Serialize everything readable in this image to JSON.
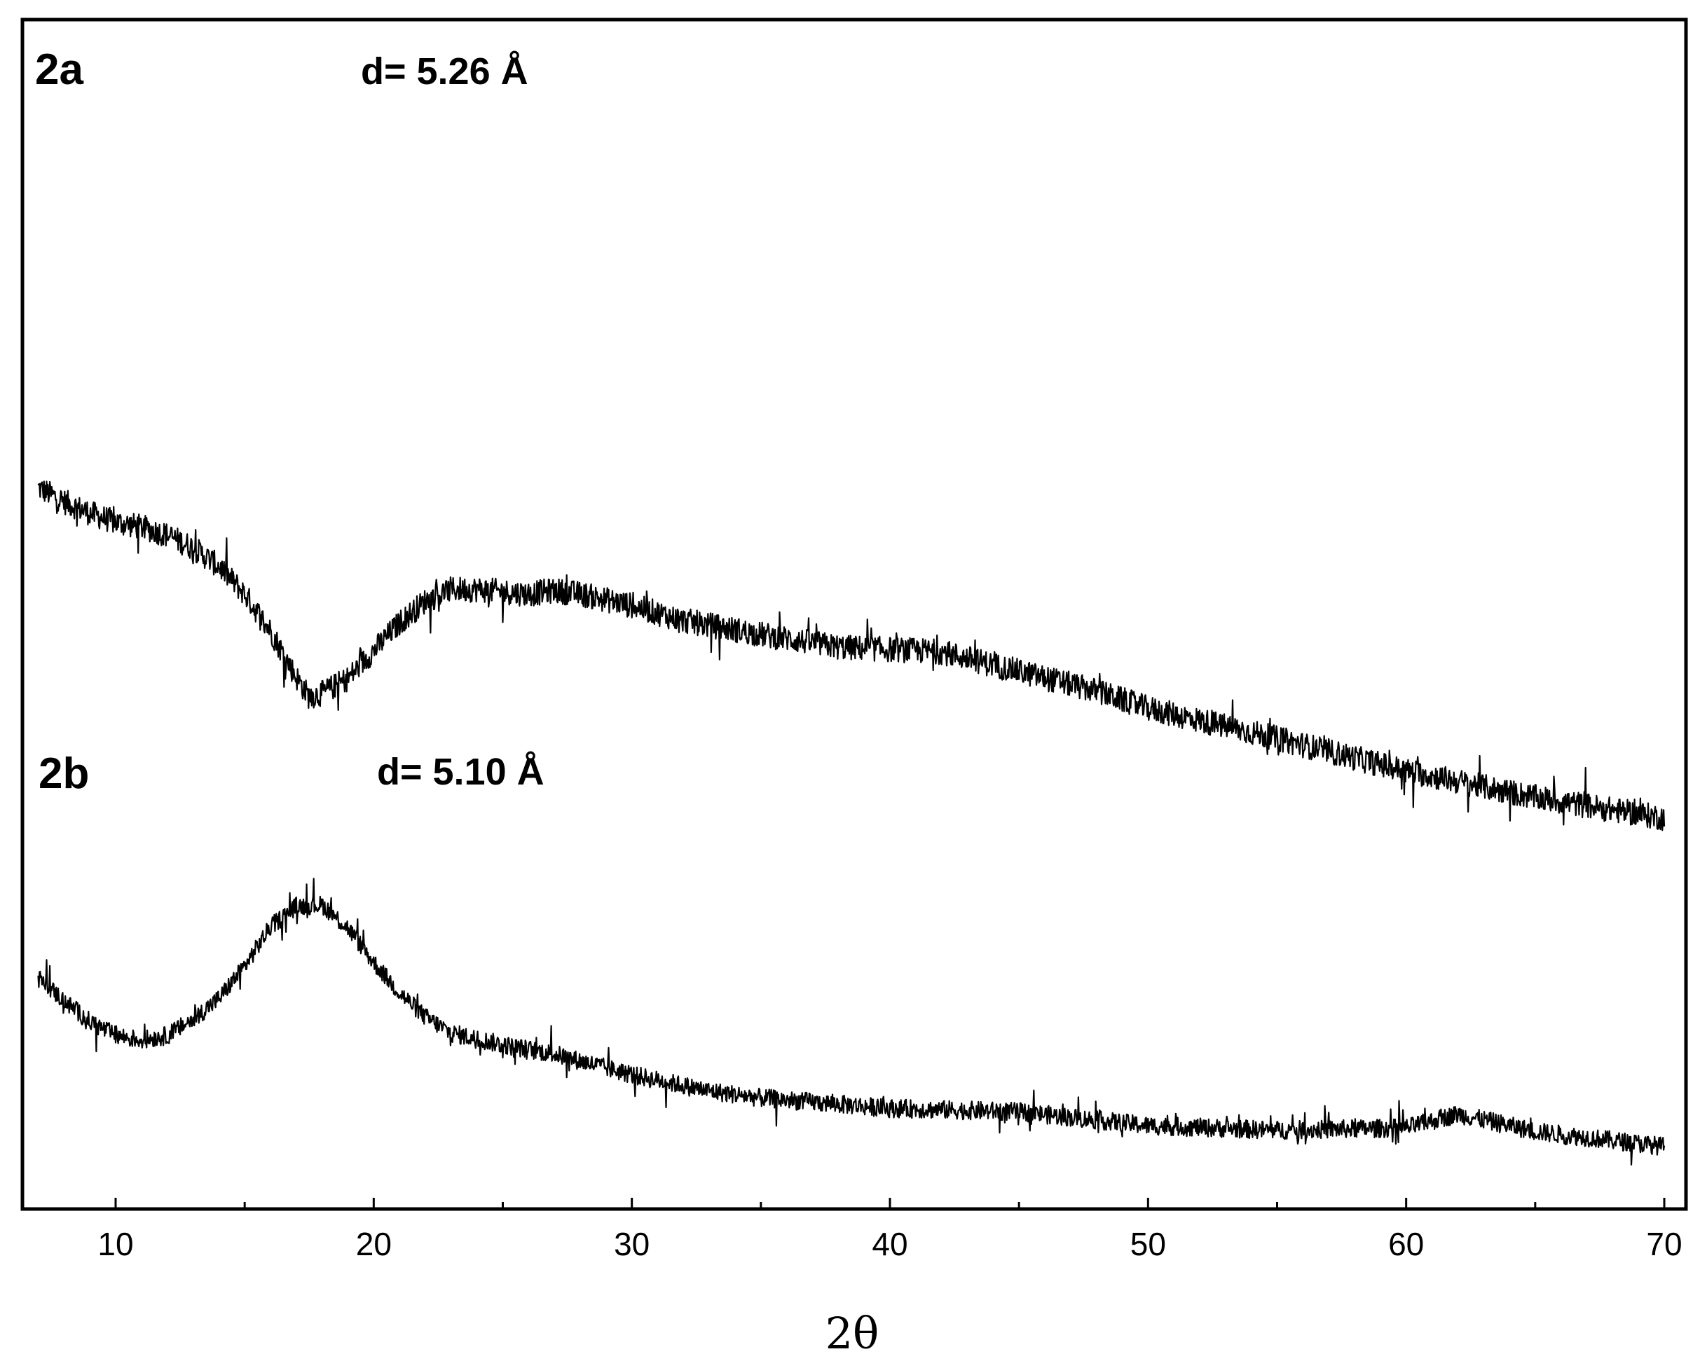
{
  "chart_data": {
    "type": "line",
    "xlabel": "2θ",
    "ylabel": "",
    "xlim": [
      7,
      70
    ],
    "x_ticks": [
      "10",
      "20",
      "30",
      "40",
      "50",
      "60",
      "70"
    ],
    "x_tick_values": [
      10,
      20,
      30,
      40,
      50,
      60,
      70
    ],
    "grid": false,
    "series": [
      {
        "name": "2a",
        "annotation": "d= 5.26 Å",
        "x": [
          7,
          8,
          9,
          10,
          11,
          12,
          13,
          14,
          15,
          16,
          17,
          17.5,
          18,
          19,
          20,
          21,
          22,
          23,
          24,
          25,
          26,
          27,
          28,
          30,
          32,
          35,
          38,
          40,
          42,
          45,
          48,
          50,
          55,
          60,
          65,
          70
        ],
        "y": [
          752,
          740,
          730,
          722,
          718,
          711,
          700,
          684,
          660,
          628,
          588,
          571,
          574,
          587,
          611,
          635,
          654,
          664,
          664,
          662,
          660,
          663,
          660,
          650,
          637,
          625,
          614,
          612,
          610,
          593,
          576,
          561,
          535,
          507,
          484,
          466
        ]
      },
      {
        "name": "2b",
        "annotation": "d= 5.10 Å",
        "x": [
          7,
          8,
          9,
          10,
          11,
          12,
          13,
          14,
          15,
          16,
          17,
          18,
          19,
          20,
          21,
          22,
          23,
          25,
          27,
          30,
          33,
          35,
          40,
          45,
          50,
          55,
          60,
          62,
          65,
          70
        ],
        "y": [
          328,
          308,
          290,
          278,
          274,
          278,
          292,
          310,
          338,
          372,
          390,
          391,
          371,
          341,
          315,
          294,
          280,
          270,
          262,
          244,
          230,
          224,
          215,
          212,
          200,
          196,
          198,
          210,
          195,
          182
        ]
      }
    ]
  }
}
